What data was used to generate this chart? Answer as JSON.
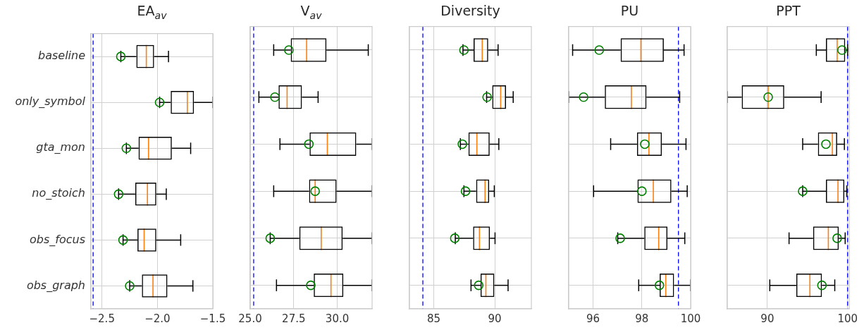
{
  "chart_data": [
    {
      "type": "box",
      "title": "EA$_{av}$",
      "orientation": "horizontal",
      "grid": true,
      "marker": "circle",
      "categories": [
        "baseline",
        "only_symbol",
        "gta_mon",
        "no_stoich",
        "obs_focus",
        "obs_graph"
      ],
      "xlim": [
        -2.6,
        -1.5
      ],
      "xticks": [
        {
          "value": -2.5,
          "label": "−2.5"
        },
        {
          "value": -2.0,
          "label": "−2.0"
        },
        {
          "value": -1.5,
          "label": "−1.5"
        }
      ],
      "ref_lines": [
        {
          "axis": "x",
          "value": -2.58,
          "color": "#0000ff",
          "line_style": "dashed"
        }
      ],
      "series": [
        {
          "type": "box",
          "color": "#000000",
          "boxes": [
            {
              "low": -2.33,
              "q1": -2.19,
              "median": -2.1,
              "q3": -2.03,
              "high": -1.9
            },
            {
              "low": -1.98,
              "q1": -1.88,
              "median": -1.73,
              "q3": -1.67,
              "high": -1.5
            },
            {
              "low": -2.28,
              "q1": -2.17,
              "median": -2.08,
              "q3": -1.87,
              "high": -1.7
            },
            {
              "low": -2.35,
              "q1": -2.2,
              "median": -2.09,
              "q3": -2.01,
              "high": -1.92
            },
            {
              "low": -2.31,
              "q1": -2.18,
              "median": -2.12,
              "q3": -2.01,
              "high": -1.79
            },
            {
              "low": -2.25,
              "q1": -2.14,
              "median": -2.04,
              "q3": -1.91,
              "high": -1.68
            }
          ]
        },
        {
          "type": "scatter",
          "color": "#008000",
          "values": [
            -2.33,
            -1.98,
            -2.28,
            -2.35,
            -2.31,
            -2.25
          ]
        }
      ]
    },
    {
      "type": "box",
      "title": "V$_{av}$",
      "orientation": "horizontal",
      "grid": true,
      "marker": "circle",
      "tick_labels": "x",
      "categories": [
        null,
        null,
        null,
        null,
        null,
        null
      ],
      "xlim": [
        25,
        32
      ],
      "xticks": [
        {
          "value": 25,
          "label": "25.0"
        },
        {
          "value": 27.5,
          "label": "27.5"
        },
        {
          "value": 30,
          "label": "30.0"
        }
      ],
      "ref_lines": [
        {
          "axis": "x",
          "value": 25.2,
          "color": "#0000ff",
          "line_style": "dashed"
        }
      ],
      "series": [
        {
          "type": "box",
          "color": "#000000",
          "boxes": [
            {
              "low": 26.35,
              "q1": 27.33,
              "median": 28.24,
              "q3": 29.38,
              "high": 31.78
            },
            {
              "low": 25.5,
              "q1": 26.63,
              "median": 27.12,
              "q3": 27.97,
              "high": 28.9
            },
            {
              "low": 26.71,
              "q1": 28.41,
              "median": 29.43,
              "q3": 31.09,
              "high": 32.0
            },
            {
              "low": 26.35,
              "q1": 28.38,
              "median": 28.73,
              "q3": 29.96,
              "high": 32.0
            },
            {
              "low": 26.15,
              "q1": 27.82,
              "median": 29.08,
              "q3": 30.31,
              "high": 32.0
            },
            {
              "low": 26.51,
              "q1": 28.65,
              "median": 29.64,
              "q3": 30.35,
              "high": 32.0
            }
          ]
        },
        {
          "type": "scatter",
          "color": "#008000",
          "values": [
            27.22,
            26.42,
            28.37,
            28.73,
            26.15,
            28.48
          ]
        }
      ]
    },
    {
      "type": "box",
      "title": "Diversity",
      "orientation": "horizontal",
      "grid": true,
      "marker": "circle",
      "tick_labels": "x",
      "categories": [
        null,
        null,
        null,
        null,
        null,
        null
      ],
      "xlim": [
        83,
        93
      ],
      "xticks": [
        85,
        90
      ],
      "ref_lines": [
        {
          "axis": "x",
          "value": 84.1,
          "color": "#0000ff",
          "line_style": "dashed"
        }
      ],
      "series": [
        {
          "type": "box",
          "color": "#000000",
          "boxes": [
            {
              "low": 87.39,
              "q1": 88.26,
              "median": 88.97,
              "q3": 89.46,
              "high": 90.27
            },
            {
              "low": 89.33,
              "q1": 89.79,
              "median": 90.48,
              "q3": 90.92,
              "high": 91.51
            },
            {
              "low": 87.18,
              "q1": 87.84,
              "median": 88.53,
              "q3": 89.58,
              "high": 90.33
            },
            {
              "low": 87.47,
              "q1": 88.47,
              "median": 89.2,
              "q3": 89.54,
              "high": 89.96
            },
            {
              "low": 86.76,
              "q1": 88.22,
              "median": 88.74,
              "q3": 89.6,
              "high": 90.02
            },
            {
              "low": 88.05,
              "q1": 88.83,
              "median": 89.27,
              "q3": 89.96,
              "high": 91.09
            }
          ]
        },
        {
          "type": "scatter",
          "color": "#008000",
          "values": [
            87.47,
            89.37,
            87.34,
            87.6,
            86.72,
            88.68
          ]
        }
      ]
    },
    {
      "type": "box",
      "title": "PU",
      "orientation": "horizontal",
      "grid": true,
      "marker": "circle",
      "tick_labels": "x",
      "categories": [
        null,
        null,
        null,
        null,
        null,
        null
      ],
      "xlim": [
        95,
        100
      ],
      "xticks": [
        96,
        98,
        100
      ],
      "ref_lines": [
        {
          "axis": "x",
          "value": 99.5,
          "color": "#0000ff",
          "line_style": "dashed"
        }
      ],
      "series": [
        {
          "type": "box",
          "color": "#000000",
          "boxes": [
            {
              "low": 95.16,
              "q1": 97.13,
              "median": 97.96,
              "q3": 98.9,
              "high": 99.73
            },
            {
              "low": 95.0,
              "q1": 96.48,
              "median": 97.57,
              "q3": 98.19,
              "high": 99.55
            },
            {
              "low": 96.72,
              "q1": 97.8,
              "median": 98.29,
              "q3": 98.82,
              "high": 99.81
            },
            {
              "low": 96.02,
              "q1": 97.82,
              "median": 98.47,
              "q3": 99.21,
              "high": 99.86
            },
            {
              "low": 97.01,
              "q1": 98.1,
              "median": 98.69,
              "q3": 99.05,
              "high": 99.76
            },
            {
              "low": 97.87,
              "q1": 98.73,
              "median": 98.98,
              "q3": 99.32,
              "high": 100
            }
          ]
        },
        {
          "type": "scatter",
          "color": "#008000",
          "values": [
            96.25,
            95.61,
            98.12,
            98.0,
            97.11,
            98.72
          ]
        }
      ]
    },
    {
      "type": "box",
      "title": "PPT",
      "orientation": "horizontal",
      "grid": true,
      "marker": "circle",
      "tick_labels": "x",
      "categories": [
        null,
        null,
        null,
        null,
        null,
        null
      ],
      "xlim": [
        85,
        100.2
      ],
      "xticks": [
        90,
        100
      ],
      "ref_lines": [
        {
          "axis": "x",
          "value": 100,
          "color": "#0000ff",
          "line_style": "dashed"
        }
      ],
      "series": [
        {
          "type": "box",
          "color": "#000000",
          "boxes": [
            {
              "low": 96.1,
              "q1": 97.3,
              "median": 98.7,
              "q3": 99.7,
              "high": 100
            },
            {
              "low": 85.0,
              "q1": 86.8,
              "median": 90.1,
              "q3": 92.1,
              "high": 96.7
            },
            {
              "low": 94.4,
              "q1": 96.3,
              "median": 98.1,
              "q3": 98.7,
              "high": 99.6
            },
            {
              "low": 94.4,
              "q1": 97.3,
              "median": 98.8,
              "q3": 99.6,
              "high": 99.9
            },
            {
              "low": 92.7,
              "q1": 95.7,
              "median": 97.6,
              "q3": 98.9,
              "high": 99.7
            },
            {
              "low": 90.3,
              "q1": 93.6,
              "median": 95.3,
              "q3": 96.8,
              "high": 98.4
            }
          ]
        },
        {
          "type": "scatter",
          "color": "#008000",
          "values": [
            99.3,
            90.1,
            97.3,
            94.4,
            98.7,
            96.8
          ]
        }
      ]
    }
  ]
}
